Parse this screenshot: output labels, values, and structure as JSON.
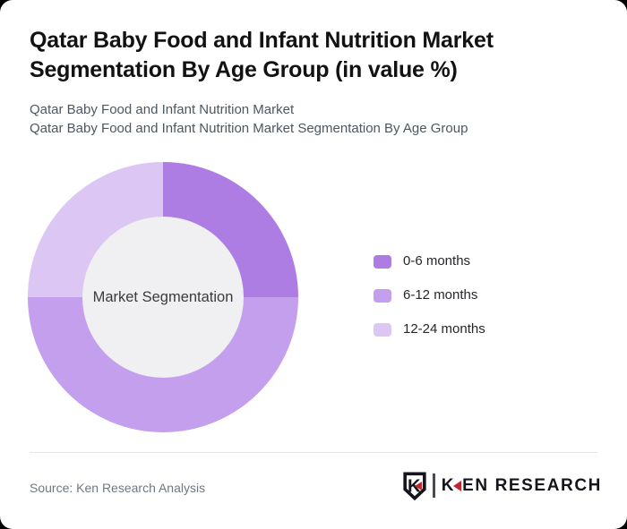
{
  "page": {
    "background_color": "#000000",
    "card_color": "#ffffff"
  },
  "header": {
    "title": "Qatar Baby Food and Infant Nutrition Market Segmentation By Age Group (in value %)",
    "title_lines": [
      "Qatar Baby Food and Infant Nutrition Market",
      "Segmentation By Age Group (in value %)"
    ],
    "subtitle_lines": [
      "Qatar Baby Food and Infant Nutrition Market",
      "Qatar Baby Food and Infant Nutrition Market Segmentation By Age Group"
    ]
  },
  "chart_data": {
    "type": "pie",
    "subtype": "donut",
    "title": "Qatar Baby Food and Infant Nutrition Market Segmentation By Age Group (in value %)",
    "center_label": "Market Segmentation",
    "categories": [
      "0-6 months",
      "6-12 months",
      "12-24 months"
    ],
    "values": [
      25,
      50,
      25
    ],
    "unit": "percent",
    "colors": [
      "#ad7de4",
      "#c49fee",
      "#dcc6f4"
    ],
    "hole_color": "#f0eff1",
    "start_angle_deg": 0,
    "direction": "clockwise",
    "legend_position": "right",
    "data_labels_shown": false
  },
  "footer": {
    "source": "Source: Ken Research Analysis",
    "logo": {
      "shield_letter": "K",
      "brand_k": "K",
      "brand_rest": "EN RESEARCH",
      "brand_full": "KEN RESEARCH",
      "accent_color": "#c5262c",
      "text_color": "#15151d"
    }
  }
}
